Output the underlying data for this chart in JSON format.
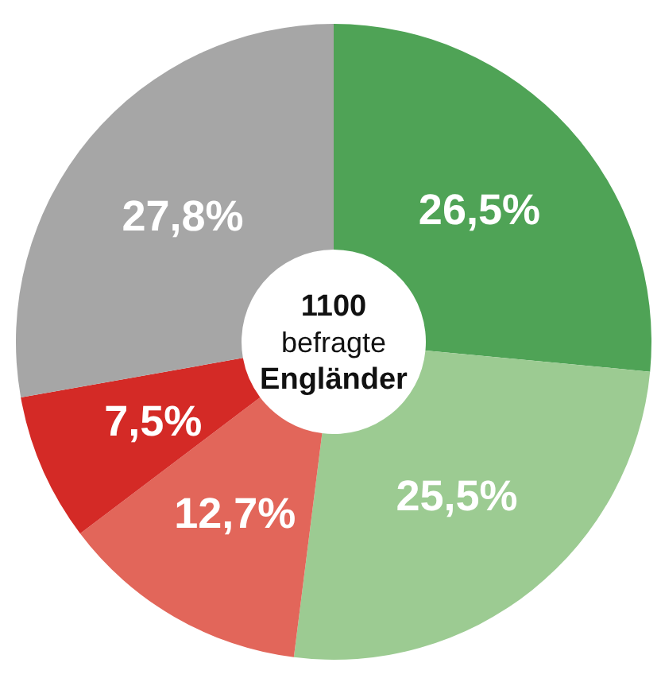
{
  "chart_data": {
    "type": "donut",
    "categories": [
      null,
      null,
      null,
      null,
      null
    ],
    "values": [
      26.5,
      25.5,
      12.7,
      7.5,
      27.8
    ],
    "colors": [
      "#4fa356",
      "#9ccb92",
      "#e2665a",
      "#d42a26",
      "#a6a6a6"
    ],
    "value_labels": [
      "26,5%",
      "25,5%",
      "12,7%",
      "7,5%",
      "27,8%"
    ],
    "annotations": [
      "1100",
      "befragte",
      "Engländer"
    ]
  }
}
